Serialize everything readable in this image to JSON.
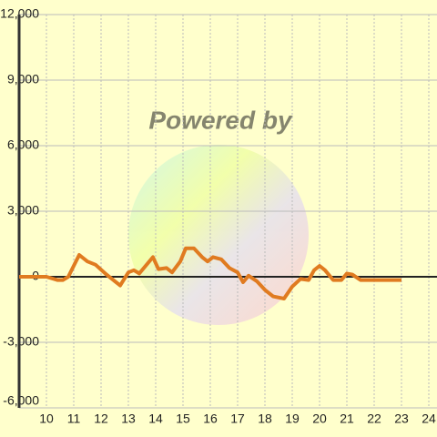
{
  "chart_data": {
    "type": "line",
    "watermark": "Powered by",
    "xlim": [
      9,
      24.3
    ],
    "xticks": [
      10,
      11,
      12,
      13,
      14,
      15,
      16,
      17,
      18,
      19,
      20,
      21,
      22,
      23,
      24
    ],
    "ylim": [
      -6000,
      12000
    ],
    "yticks": [
      {
        "value": -6000,
        "label": "-6,000"
      },
      {
        "value": -3000,
        "label": "-3,000"
      },
      0,
      {
        "value": 3000,
        "label": "3,000"
      },
      {
        "value": 6000,
        "label": "6,000"
      },
      {
        "value": 9000,
        "label": "9,000"
      },
      {
        "value": 12000,
        "label": "12,000"
      }
    ],
    "grid": true,
    "series": [
      {
        "color": "#e07b20",
        "x": [
          9,
          10,
          10.4,
          10.6,
          10.8,
          11.2,
          11.5,
          11.8,
          12.2,
          12.7,
          13.0,
          13.2,
          13.4,
          13.9,
          14.1,
          14.4,
          14.6,
          14.9,
          15.1,
          15.4,
          15.7,
          15.9,
          16.1,
          16.4,
          16.7,
          17.0,
          17.2,
          17.4,
          17.7,
          18.0,
          18.3,
          18.7,
          19.0,
          19.3,
          19.6,
          19.8,
          20.0,
          20.2,
          20.5,
          20.8,
          21.0,
          21.2,
          21.5,
          22.0,
          22.5,
          23.0
        ],
        "values": [
          0,
          0,
          -150,
          -150,
          0,
          1000,
          700,
          550,
          100,
          -400,
          200,
          300,
          150,
          900,
          350,
          400,
          200,
          700,
          1300,
          1300,
          900,
          700,
          900,
          800,
          400,
          200,
          -250,
          50,
          -200,
          -600,
          -900,
          -1000,
          -450,
          -100,
          -150,
          300,
          500,
          300,
          -150,
          -150,
          150,
          100,
          -150,
          -150,
          -150,
          -150
        ]
      }
    ]
  }
}
